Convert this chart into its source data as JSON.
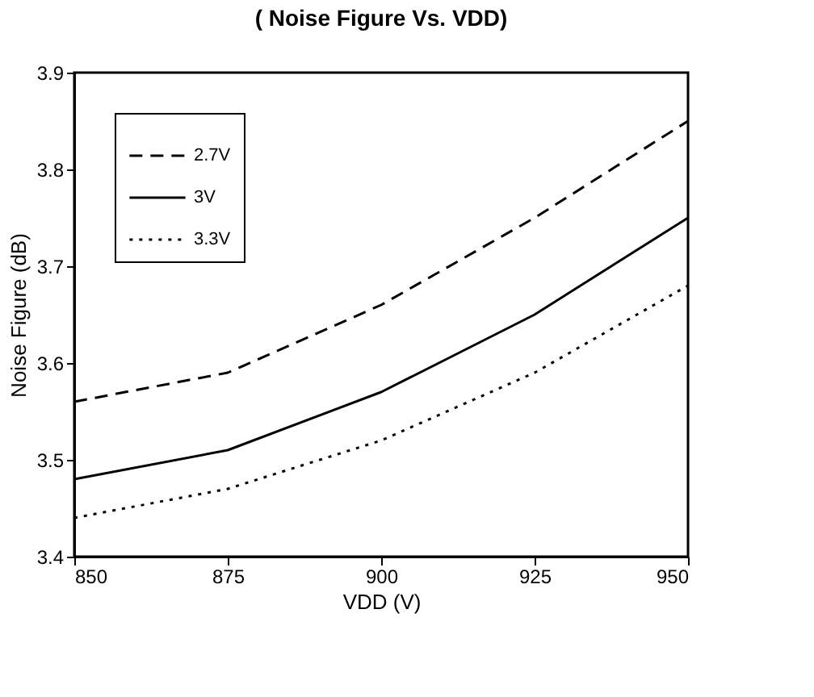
{
  "chart_data": {
    "type": "line",
    "title": "( Noise Figure Vs. VDD)",
    "xlabel": "VDD (V)",
    "ylabel": "Noise Figure (dB)",
    "x": [
      850,
      875,
      900,
      925,
      950
    ],
    "series": [
      {
        "name": "2.7V",
        "color": "#000000",
        "line_style": "dashed",
        "values": [
          3.56,
          3.59,
          3.66,
          3.75,
          3.85
        ]
      },
      {
        "name": "3V",
        "color": "#000000",
        "line_style": "solid",
        "values": [
          3.48,
          3.51,
          3.57,
          3.65,
          3.75
        ]
      },
      {
        "name": "3.3V",
        "color": "#000000",
        "line_style": "dotted",
        "values": [
          3.44,
          3.47,
          3.52,
          3.59,
          3.68
        ]
      }
    ],
    "xlim": [
      850,
      950
    ],
    "xticks": [
      850,
      875,
      900,
      925,
      950
    ],
    "ylim": [
      3.4,
      3.9
    ],
    "yticks": [
      3.4,
      3.5,
      3.6,
      3.7,
      3.8,
      3.9
    ],
    "grid": false,
    "legend": "top left",
    "marker": "none"
  }
}
